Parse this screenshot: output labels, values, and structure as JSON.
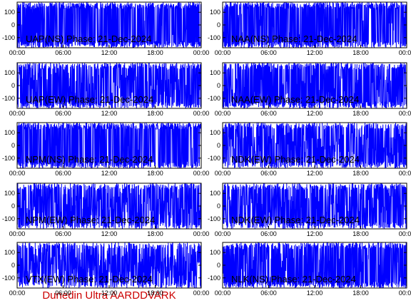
{
  "figure": {
    "footer": "Dunedin Ultra AARDDVARK",
    "colors": {
      "trace": "#0000ff",
      "axes": "#000000",
      "background": "#ffffff",
      "footer": "#cc0000"
    }
  },
  "chart_data": [
    {
      "type": "line",
      "title": "UAP(NS) Phase: 21-Dec-2024",
      "ylim": [
        -180,
        180
      ],
      "yticks": [
        100,
        0,
        -100
      ],
      "xlim": [
        "00:00",
        "24:00"
      ],
      "xticks": [
        "00:00",
        "06:00",
        "12:00",
        "18:00",
        "00:00"
      ],
      "grid": false,
      "fill": 0.96
    },
    {
      "type": "line",
      "title": "NAA(NS) Phase: 21-Dec-2024",
      "ylim": [
        -180,
        180
      ],
      "yticks": [
        100,
        0,
        -100
      ],
      "xlim": [
        "00:00",
        "24:00"
      ],
      "xticks": [
        "00:00",
        "06:00",
        "12:00",
        "18:00",
        "00:00"
      ],
      "grid": false,
      "fill": 0.95
    },
    {
      "type": "line",
      "title": "UAP(EW) Phase: 21-Dec-2024",
      "ylim": [
        -180,
        180
      ],
      "yticks": [
        100,
        0,
        -100
      ],
      "xlim": [
        "00:00",
        "24:00"
      ],
      "xticks": [
        "00:00",
        "06:00",
        "12:00",
        "18:00",
        "00:00"
      ],
      "grid": false,
      "fill": 0.75
    },
    {
      "type": "line",
      "title": "NAA(EW) Phase: 21-Dec-2024",
      "ylim": [
        -180,
        180
      ],
      "yticks": [
        100,
        0,
        -100
      ],
      "xlim": [
        "00:00",
        "24:00"
      ],
      "xticks": [
        "00:00",
        "06:00",
        "12:00",
        "18:00",
        "00:00"
      ],
      "grid": false,
      "fill": 0.85
    },
    {
      "type": "line",
      "title": "NPM(NS) Phase: 21-Dec-2024",
      "ylim": [
        -180,
        180
      ],
      "yticks": [
        100,
        0,
        -100
      ],
      "xlim": [
        "00:00",
        "24:00"
      ],
      "xticks": [
        "00:00",
        "06:00",
        "12:00",
        "18:00",
        "00:00"
      ],
      "grid": false,
      "fill": 0.98
    },
    {
      "type": "line",
      "title": "NDK(EW) Phase: 21-Dec-2024",
      "ylim": [
        -180,
        180
      ],
      "yticks": [
        100,
        0,
        -100
      ],
      "xlim": [
        "00:00",
        "24:00"
      ],
      "xticks": [
        "00:00",
        "06:00",
        "12:00",
        "18:00",
        "00:00"
      ],
      "grid": false,
      "fill": 0.72
    },
    {
      "type": "line",
      "title": "NPM(EW) Phase: 21-Dec-2024",
      "ylim": [
        -180,
        180
      ],
      "yticks": [
        100,
        0,
        -100
      ],
      "xlim": [
        "00:00",
        "24:00"
      ],
      "xticks": [
        "00:00",
        "06:00",
        "12:00",
        "18:00",
        "00:00"
      ],
      "grid": false,
      "fill": 0.7
    },
    {
      "type": "line",
      "title": "NDK(EW) Phase: 21-Dec-2024",
      "ylim": [
        -180,
        180
      ],
      "yticks": [
        100,
        0,
        -100
      ],
      "xlim": [
        "00:00",
        "24:00"
      ],
      "xticks": [
        "00:00",
        "06:00",
        "12:00",
        "18:00",
        "00:00"
      ],
      "grid": false,
      "fill": 0.72
    },
    {
      "type": "line",
      "title": "VTX(EW) Phase: 21-Dec-2024",
      "ylim": [
        -180,
        180
      ],
      "yticks": [
        100,
        0,
        -100
      ],
      "xlim": [
        "00:00",
        "24:00"
      ],
      "xticks": [
        "00:00",
        "06:00",
        "12:00",
        "18:00",
        "00:00"
      ],
      "grid": false,
      "fill": 0.55
    },
    {
      "type": "line",
      "title": "NLK(NS) Phase: 21-Dec-2024",
      "ylim": [
        -180,
        180
      ],
      "yticks": [
        100,
        0,
        -100
      ],
      "xlim": [
        "00:00",
        "24:00"
      ],
      "xticks": [
        "00:00",
        "06:00",
        "12:00",
        "18:00",
        "00:00"
      ],
      "grid": false,
      "fill": 0.9
    }
  ]
}
